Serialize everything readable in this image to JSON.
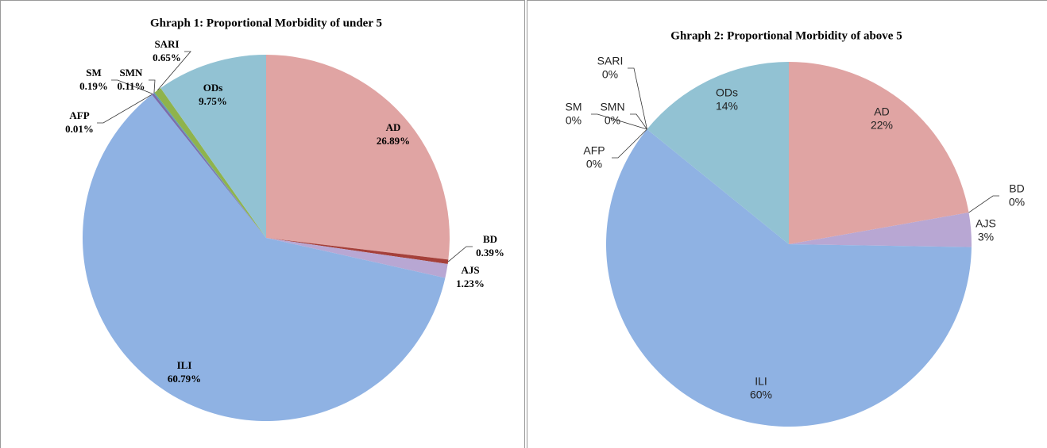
{
  "chart_data": [
    {
      "type": "pie",
      "title": "Ghraph 1: Proportional Morbidity of under 5",
      "categories": [
        "AD",
        "BD",
        "AJS",
        "ILI",
        "AFP",
        "SM",
        "SMN",
        "SARI",
        "ODs"
      ],
      "values": [
        26.89,
        0.39,
        1.23,
        60.79,
        0.01,
        0.19,
        0.11,
        0.65,
        9.75
      ],
      "value_labels": [
        "26.89%",
        "0.39%",
        "1.23%",
        "60.79%",
        "0.01%",
        "0.19%",
        "0.11%",
        "0.65%",
        "9.75%"
      ],
      "colors": [
        "#e0a4a3",
        "#a5403a",
        "#b8a7d3",
        "#8fb2e3",
        "#4f4f9c",
        "#7b6aaa",
        "#5b9fb1",
        "#8fb34c",
        "#92c2d3"
      ]
    },
    {
      "type": "pie",
      "title": "Ghraph 2: Proportional Morbidity of above 5",
      "categories": [
        "AD",
        "BD",
        "AJS",
        "ILI",
        "AFP",
        "SM",
        "SMN",
        "SARI",
        "ODs"
      ],
      "values": [
        22,
        0,
        3,
        60,
        0,
        0,
        0,
        0,
        14
      ],
      "value_labels": [
        "22%",
        "0%",
        "3%",
        "60%",
        "0%",
        "0%",
        "0%",
        "0%",
        "14%"
      ],
      "colors": [
        "#e0a4a3",
        "#a5403a",
        "#b8a7d3",
        "#8fb2e3",
        "#4f4f9c",
        "#7b6aaa",
        "#5b9fb1",
        "#8fb34c",
        "#92c2d3"
      ]
    }
  ]
}
